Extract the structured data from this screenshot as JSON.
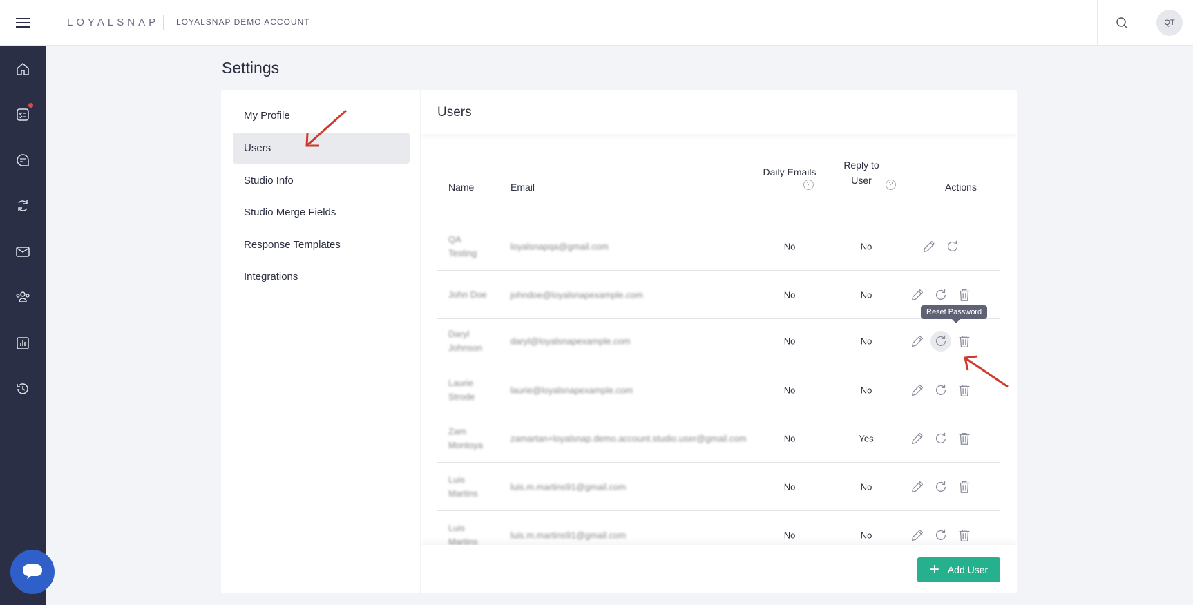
{
  "header": {
    "logo": "LOYALSNAP",
    "account": "LOYALSNAP DEMO ACCOUNT",
    "avatar_initials": "QT"
  },
  "sidebar": {
    "icons": [
      "home-icon",
      "checklist-icon",
      "chat-icon",
      "refresh-icon",
      "mail-icon",
      "people-icon",
      "chart-icon",
      "history-icon"
    ],
    "notification_color": "#e04848"
  },
  "page": {
    "title": "Settings"
  },
  "settings_menu": {
    "items": [
      {
        "label": "My Profile"
      },
      {
        "label": "Users",
        "active": true
      },
      {
        "label": "Studio Info"
      },
      {
        "label": "Studio Merge Fields"
      },
      {
        "label": "Response Templates"
      },
      {
        "label": "Integrations"
      }
    ]
  },
  "users": {
    "title": "Users",
    "columns": {
      "name": "Name",
      "email": "Email",
      "daily_emails": "Daily Emails",
      "reply_to_user": "Reply to User",
      "actions": "Actions",
      "help": "?"
    },
    "rows": [
      {
        "name": "QA Testing",
        "email": "loyalsnapqa@gmail.com",
        "daily": "No",
        "reply": "No",
        "delete": false
      },
      {
        "name": "John Doe",
        "email": "johndoe@loyalsnapexample.com",
        "daily": "No",
        "reply": "No",
        "delete": true
      },
      {
        "name": "Daryl Johnson",
        "email": "daryl@loyalsnapexample.com",
        "daily": "No",
        "reply": "No",
        "delete": true
      },
      {
        "name": "Laurie Strode",
        "email": "laurie@loyalsnapexample.com",
        "daily": "No",
        "reply": "No",
        "delete": true
      },
      {
        "name": "Zam Montoya",
        "email": "zamartan+loyalsnap.demo.account.studio.user@gmail.com",
        "daily": "No",
        "reply": "Yes",
        "delete": true
      },
      {
        "name": "Luis Martins",
        "email": "luis.m.martins91@gmail.com",
        "daily": "No",
        "reply": "No",
        "delete": true
      },
      {
        "name": "Luis Martins",
        "email": "luis.m.martins91@gmail.com",
        "daily": "No",
        "reply": "No",
        "delete": true
      }
    ],
    "tooltip": "Reset Password",
    "add_button": "Add User",
    "accent": "#27b08e"
  }
}
